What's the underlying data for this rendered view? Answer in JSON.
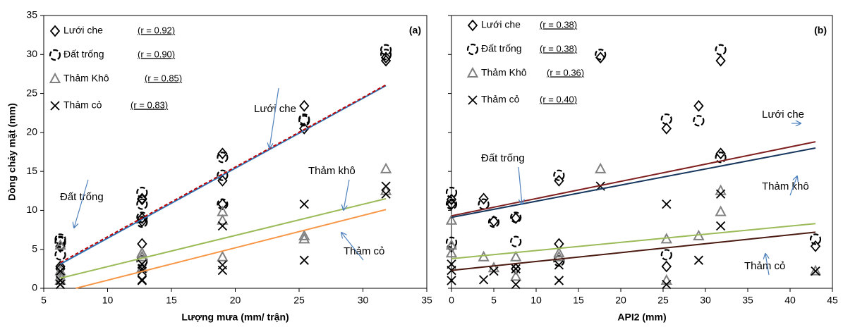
{
  "chart_data": [
    {
      "type": "scatter",
      "panel_label": "(a)",
      "x_label": "Lượng mưa (mm/ trận)",
      "y_label": "Dòng chảy mặt (mm)",
      "xlim": [
        5,
        35
      ],
      "xticks": [
        5,
        10,
        15,
        20,
        25,
        30,
        35
      ],
      "ylim": [
        0,
        35
      ],
      "yticks": [
        0,
        5,
        10,
        15,
        20,
        25,
        30,
        35
      ],
      "grid": false,
      "x": [
        31.8,
        31.8,
        25.4,
        25.4,
        19,
        19,
        19,
        12.7,
        12.7,
        12.7,
        12.7,
        6.3,
        6.3,
        6.3,
        6.3,
        12.7
      ],
      "series": [
        {
          "name": "Lưới che",
          "r_label": "(r = 0.92)",
          "marker": "diamond",
          "color": "#000000",
          "values": [
            29.6,
            29.2,
            23.4,
            20.5,
            17.3,
            13.8,
            10.8,
            11.4,
            11.5,
            8.6,
            9.0,
            5.4,
            5.3,
            2.5,
            2.8,
            5.7
          ]
        },
        {
          "name": "Đất trống",
          "r_label": "(r = 0.90)",
          "marker": "dashed-circle",
          "color": "#000000",
          "values": [
            30.0,
            30.6,
            21.5,
            21.7,
            16.8,
            14.5,
            10.8,
            12.3,
            10.8,
            8.5,
            9.1,
            6.3,
            5.9,
            6.0,
            4.3,
            3.5
          ]
        },
        {
          "name": "Thảm Khô",
          "r_label": "(r = 0.85)",
          "marker": "triangle",
          "color": "#808080",
          "values": [
            15.3,
            12.5,
            6.7,
            6.3,
            9.8,
            4.0,
            8.7,
            4.5,
            4.0,
            2.6,
            4.0,
            2.2,
            5.5,
            1.5,
            1.0,
            4.5
          ]
        },
        {
          "name": "Thảm cỏ",
          "r_label": "(r = 0.83)",
          "marker": "x",
          "color": "#000000",
          "values": [
            13.1,
            12.1,
            3.6,
            10.8,
            8.0,
            3.0,
            2.3,
            3.1,
            1.1,
            2.2,
            2.5,
            2.2,
            1.0,
            0.5,
            0.5,
            1.0
          ]
        }
      ],
      "trendlines": [
        {
          "x": [
            6.3,
            31.8
          ],
          "y": [
            3.1,
            26
          ],
          "color": "#2e75b6",
          "dashed": false
        },
        {
          "x": [
            6.3,
            31.8
          ],
          "y": [
            3.3,
            26.1
          ],
          "color": "#c00000",
          "dashed": true
        },
        {
          "x": [
            6.3,
            31.8
          ],
          "y": [
            1.3,
            11.5
          ],
          "color": "#9bbb59",
          "dashed": false
        },
        {
          "x": [
            7.5,
            31.8
          ],
          "y": [
            0,
            10.1
          ],
          "color": "#f79646",
          "dashed": false
        }
      ],
      "annotations": [
        "Lưới che",
        "Đất trống",
        "Thảm khô",
        "Thảm cỏ"
      ]
    },
    {
      "type": "scatter",
      "panel_label": "(b)",
      "x_label": "API2 (mm)",
      "xlim": [
        0,
        45
      ],
      "xticks": [
        0,
        5,
        10,
        15,
        20,
        25,
        30,
        35,
        40,
        45
      ],
      "ylim": [
        0,
        35
      ],
      "yticks": [
        0,
        5,
        10,
        15,
        20,
        25,
        30,
        35
      ],
      "grid": false,
      "x": [
        17.6,
        31.8,
        29.2,
        25.4,
        31.8,
        12.7,
        0,
        0,
        3.8,
        5,
        7.6,
        43,
        0,
        7.6,
        25.4,
        12.7
      ],
      "series": [
        {
          "name": "Lưới che",
          "r_label": "(r = 0.38)",
          "marker": "diamond",
          "color": "#000000",
          "values": [
            29.6,
            29.2,
            23.4,
            20.5,
            17.3,
            13.8,
            10.8,
            11.4,
            11.5,
            8.6,
            9.0,
            5.4,
            5.3,
            2.5,
            2.8,
            5.7
          ]
        },
        {
          "name": "Đất trống",
          "r_label": "(r = 0.38)",
          "marker": "dashed-circle",
          "color": "#000000",
          "values": [
            30.0,
            30.6,
            21.5,
            21.7,
            16.8,
            14.5,
            10.8,
            12.3,
            10.8,
            8.5,
            9.1,
            6.3,
            5.9,
            6.0,
            4.3,
            3.5
          ]
        },
        {
          "name": "Thảm Khô",
          "r_label": "(r = 0.36)",
          "marker": "triangle",
          "color": "#808080",
          "values": [
            15.3,
            12.5,
            6.7,
            6.3,
            9.8,
            4.0,
            8.7,
            4.5,
            4.0,
            2.6,
            4.0,
            2.2,
            5.5,
            1.5,
            1.0,
            4.5
          ]
        },
        {
          "name": "Thảm cỏ",
          "r_label": "(r = 0.40)",
          "marker": "x",
          "color": "#000000",
          "values": [
            13.1,
            12.1,
            3.6,
            10.8,
            8.0,
            3.0,
            2.3,
            3.1,
            1.1,
            2.2,
            2.5,
            2.2,
            1.0,
            0.5,
            0.5,
            1.0
          ]
        }
      ],
      "trendlines": [
        {
          "x": [
            0,
            43
          ],
          "y": [
            9.1,
            18.0
          ],
          "color": "#17375e",
          "dashed": false
        },
        {
          "x": [
            0,
            43
          ],
          "y": [
            9.3,
            18.8
          ],
          "color": "#7f1f1f",
          "dashed": false
        },
        {
          "x": [
            0,
            43
          ],
          "y": [
            3.8,
            8.3
          ],
          "color": "#9bbb59",
          "dashed": false
        },
        {
          "x": [
            0,
            43
          ],
          "y": [
            2.3,
            7.2
          ],
          "color": "#4a1a10",
          "dashed": false
        }
      ],
      "annotations": [
        "Lưới che",
        "Đất trống",
        "Thảm khô",
        "Thảm cỏ"
      ]
    }
  ]
}
